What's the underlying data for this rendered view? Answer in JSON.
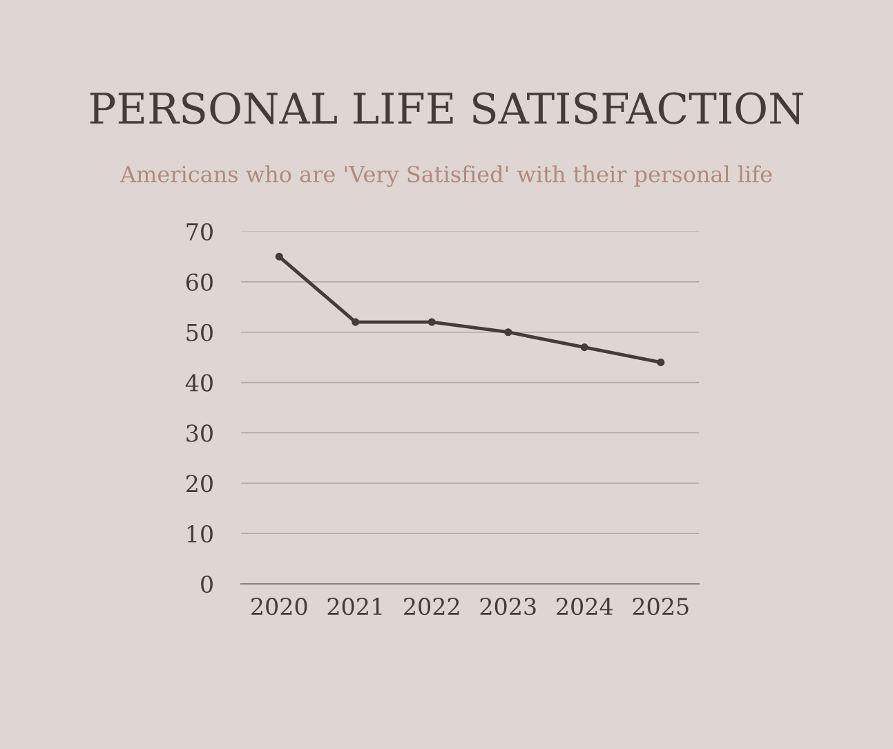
{
  "chart_data": {
    "type": "line",
    "title": "PERSONAL LIFE SATISFACTION",
    "subtitle": "Americans who are 'Very Satisfied' with their personal life",
    "categories": [
      "2020",
      "2021",
      "2022",
      "2023",
      "2024",
      "2025"
    ],
    "series": [
      {
        "color": "#463b39",
        "values": [
          65,
          52,
          52,
          50,
          47,
          44
        ]
      }
    ],
    "ylim": [
      0,
      70
    ],
    "yticks": [
      0,
      10,
      20,
      30,
      40,
      50,
      60,
      70
    ],
    "grid": "y",
    "marker": "circle",
    "line_style": "solid"
  }
}
